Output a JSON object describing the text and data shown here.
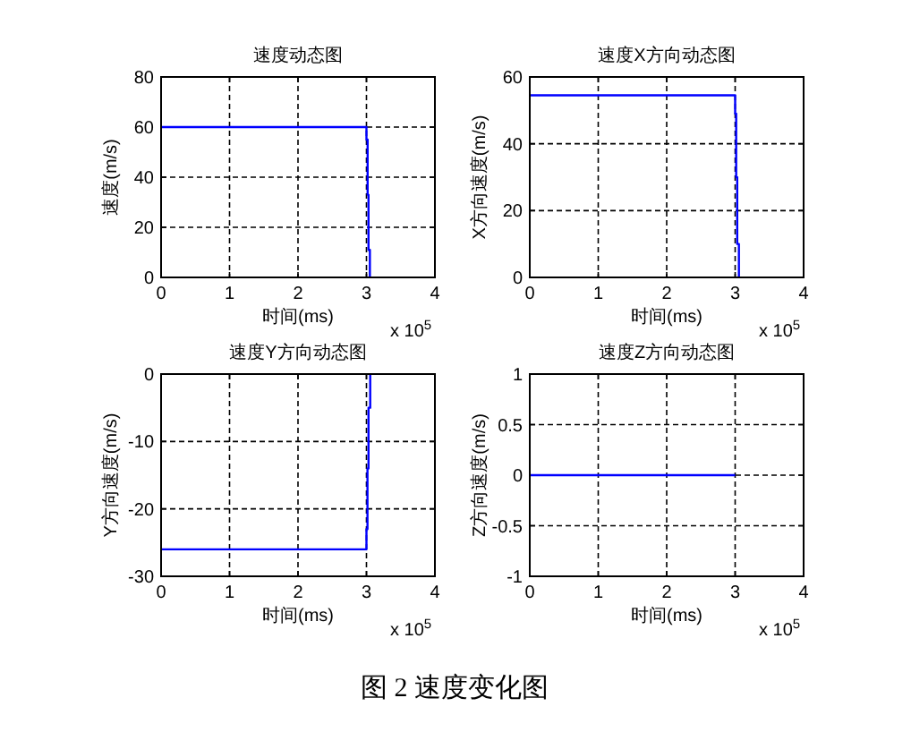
{
  "chart_data": [
    {
      "type": "line",
      "title": "速度动态图",
      "xlabel": "时间(ms)",
      "ylabel": "速度(m/s)",
      "annotations": [
        "x 10$^{5}$"
      ],
      "grid": true,
      "xlim": [
        0,
        4
      ],
      "ylim": [
        0,
        80
      ],
      "xticks": [
        0,
        1,
        2,
        3,
        4
      ],
      "yticks": [
        0,
        20,
        40,
        60,
        80
      ],
      "series": [
        {
          "color": "#0000ff",
          "x": [
            0,
            3,
            3,
            3.017,
            3.017,
            3.03,
            3.03,
            3.05,
            3.05
          ],
          "values": [
            60,
            60,
            55,
            55,
            33,
            33,
            11,
            11,
            0
          ]
        }
      ]
    },
    {
      "type": "line",
      "title": "速度X方向动态图",
      "xlabel": "时间(ms)",
      "ylabel": "X方向速度(m/s)",
      "annotations": [
        "x 10$^{5}$"
      ],
      "grid": true,
      "xlim": [
        0,
        4
      ],
      "ylim": [
        0,
        60
      ],
      "xticks": [
        0,
        1,
        2,
        3,
        4
      ],
      "yticks": [
        0,
        20,
        40,
        60
      ],
      "series": [
        {
          "color": "#0000ff",
          "x": [
            0,
            3,
            3,
            3.015,
            3.015,
            3.03,
            3.03,
            3.055,
            3.055
          ],
          "values": [
            54.5,
            54.5,
            49,
            49,
            30,
            30,
            10,
            10,
            0
          ]
        }
      ]
    },
    {
      "type": "line",
      "title": "速度Y方向动态图",
      "xlabel": "时间(ms)",
      "ylabel": "Y方向速度(m/s)",
      "annotations": [
        "x 10$^{5}$"
      ],
      "grid": true,
      "xlim": [
        0,
        4
      ],
      "ylim": [
        -30,
        0
      ],
      "xticks": [
        0,
        1,
        2,
        3,
        4
      ],
      "yticks": [
        -30,
        -20,
        -10,
        0
      ],
      "series": [
        {
          "color": "#0000ff",
          "x": [
            0,
            3,
            3,
            3.015,
            3.015,
            3.03,
            3.03,
            3.055,
            3.055
          ],
          "values": [
            -26,
            -26,
            -23,
            -23,
            -14,
            -14,
            -5,
            -5,
            0
          ]
        }
      ]
    },
    {
      "type": "line",
      "title": "速度Z方向动态图",
      "xlabel": "时间(ms)",
      "ylabel": "Z方向速度(m/s)",
      "annotations": [
        "x 10$^{5}$"
      ],
      "grid": true,
      "xlim": [
        0,
        4
      ],
      "ylim": [
        -1,
        1
      ],
      "xticks": [
        0,
        1,
        2,
        3,
        4
      ],
      "yticks": [
        -1,
        -0.5,
        0,
        0.5,
        1
      ],
      "series": [
        {
          "color": "#0000ff",
          "x": [
            0,
            3
          ],
          "values": [
            0,
            0
          ]
        }
      ]
    },
    {
      "type": "other",
      "annotations": [
        "图 2 速度变化图"
      ]
    }
  ]
}
